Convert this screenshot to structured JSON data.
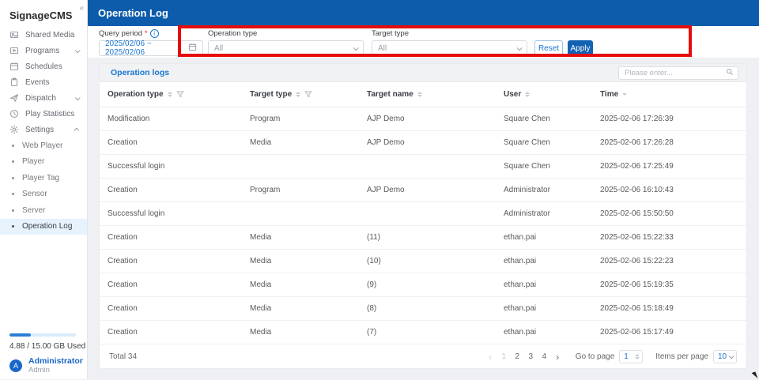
{
  "app": {
    "title": "SignageCMS",
    "collapse_glyph": "«"
  },
  "sidebar": {
    "items": [
      {
        "label": "Shared Media",
        "icon": "image-icon"
      },
      {
        "label": "Programs",
        "icon": "program-icon",
        "expandable": true
      },
      {
        "label": "Schedules",
        "icon": "calendar-icon"
      },
      {
        "label": "Events",
        "icon": "clipboard-icon"
      },
      {
        "label": "Dispatch",
        "icon": "send-icon",
        "expandable": true
      },
      {
        "label": "Play Statistics",
        "icon": "clock-icon"
      },
      {
        "label": "Settings",
        "icon": "gear-icon",
        "expanded": true
      }
    ],
    "settings_children": [
      "Web Player",
      "Player",
      "Player Tag",
      "Sensor",
      "Server",
      "Operation Log"
    ],
    "active_child": "Operation Log",
    "storage": {
      "used_label": "4.88 / 15.00 GB Used",
      "percent": 32.5
    },
    "user": {
      "name": "Administrator",
      "role": "Admin",
      "avatar_letter": "A"
    }
  },
  "header": {
    "title": "Operation Log"
  },
  "filters": {
    "query_period": {
      "label": "Query period",
      "required_mark": "*",
      "value": "2025/02/06 ~ 2025/02/06"
    },
    "operation_type": {
      "label": "Operation type",
      "value": "All"
    },
    "target_type": {
      "label": "Target type",
      "value": "All"
    },
    "reset_label": "Reset",
    "apply_label": "Apply"
  },
  "table": {
    "tab_label": "Operation logs",
    "search_placeholder": "Please enter...",
    "columns": [
      "Operation type",
      "Target type",
      "Target name",
      "User",
      "Time"
    ],
    "rows": [
      [
        "Modification",
        "Program",
        "AJP Demo",
        "Square Chen",
        "2025-02-06 17:26:39"
      ],
      [
        "Creation",
        "Media",
        "AJP Demo",
        "Square Chen",
        "2025-02-06 17:26:28"
      ],
      [
        "Successful login",
        "",
        "",
        "Square Chen",
        "2025-02-06 17:25:49"
      ],
      [
        "Creation",
        "Program",
        "AJP Demo",
        "Administrator",
        "2025-02-06 16:10:43"
      ],
      [
        "Successful login",
        "",
        "",
        "Administrator",
        "2025-02-06 15:50:50"
      ],
      [
        "Creation",
        "Media",
        "(11)",
        "ethan.pai",
        "2025-02-06 15:22:33"
      ],
      [
        "Creation",
        "Media",
        "(10)",
        "ethan.pai",
        "2025-02-06 15:22:23"
      ],
      [
        "Creation",
        "Media",
        "(9)",
        "ethan.pai",
        "2025-02-06 15:19:35"
      ],
      [
        "Creation",
        "Media",
        "(8)",
        "ethan.pai",
        "2025-02-06 15:18:49"
      ],
      [
        "Creation",
        "Media",
        "(7)",
        "ethan.pai",
        "2025-02-06 15:17:49"
      ]
    ],
    "footer": {
      "total": "Total 34",
      "prev_glyph": "‹",
      "next_glyph": "›",
      "pages": [
        "1",
        "2",
        "3",
        "4"
      ],
      "current_page": "1",
      "go_to_page_label": "Go to page",
      "go_to_page_value": "1",
      "items_per_page_label": "Items per page",
      "items_per_page_value": "10"
    }
  },
  "colors": {
    "header_blue": "#0d5cab",
    "accent_blue": "#1976d2",
    "apply_blue": "#1262b3",
    "annotation_red": "#e60c0c",
    "active_item_bg": "#e6f2fc"
  }
}
